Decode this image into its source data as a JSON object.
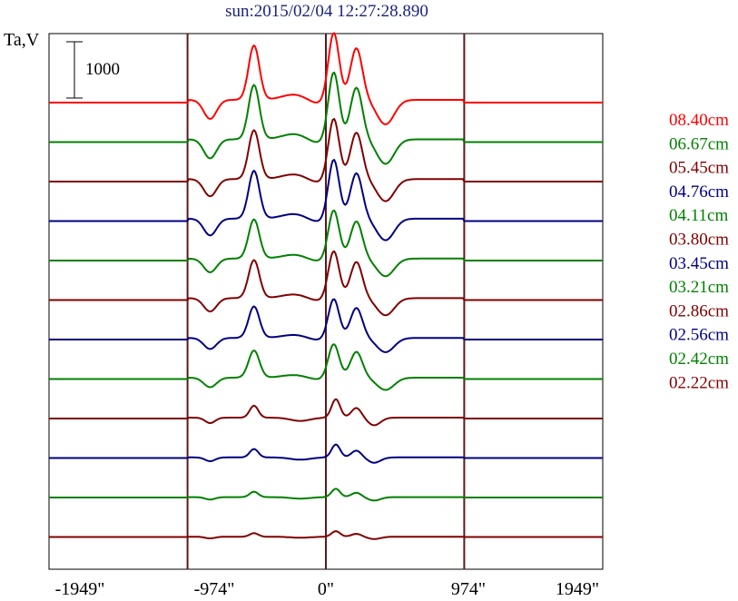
{
  "chart_data": {
    "type": "line",
    "title": "sun:2015/02/04 12:27:28.890",
    "ylabel": "Ta,V",
    "scale_bar_label": "1000",
    "x_ticks": [
      "-1949\"",
      "-974\"",
      "0\"",
      "974\"",
      "1949\""
    ],
    "x_tick_values": [
      -1949,
      -974,
      0,
      974,
      1949
    ],
    "xlim": [
      -1949,
      1949
    ],
    "vertical_lines_at": [
      -974,
      0,
      974
    ],
    "series": [
      {
        "name": "08.40cm",
        "color": "#ff0000",
        "kind": "big",
        "amp": 1.0
      },
      {
        "name": "06.67cm",
        "color": "#008000",
        "kind": "big",
        "amp": 1.0
      },
      {
        "name": "05.45cm",
        "color": "#800000",
        "kind": "big",
        "amp": 0.9
      },
      {
        "name": "04.76cm",
        "color": "#000080",
        "kind": "big",
        "amp": 0.88
      },
      {
        "name": "04.11cm",
        "color": "#008000",
        "kind": "big",
        "amp": 0.72
      },
      {
        "name": "03.80cm",
        "color": "#800000",
        "kind": "big",
        "amp": 0.7
      },
      {
        "name": "03.45cm",
        "color": "#000080",
        "kind": "big",
        "amp": 0.58
      },
      {
        "name": "03.21cm",
        "color": "#008000",
        "kind": "big",
        "amp": 0.5
      },
      {
        "name": "02.86cm",
        "color": "#800000",
        "kind": "small",
        "amp": 0.4
      },
      {
        "name": "02.56cm",
        "color": "#000080",
        "kind": "small",
        "amp": 0.28
      },
      {
        "name": "02.42cm",
        "color": "#008000",
        "kind": "small",
        "amp": 0.18
      },
      {
        "name": "02.22cm",
        "color": "#800000",
        "kind": "small",
        "amp": 0.12
      }
    ]
  }
}
